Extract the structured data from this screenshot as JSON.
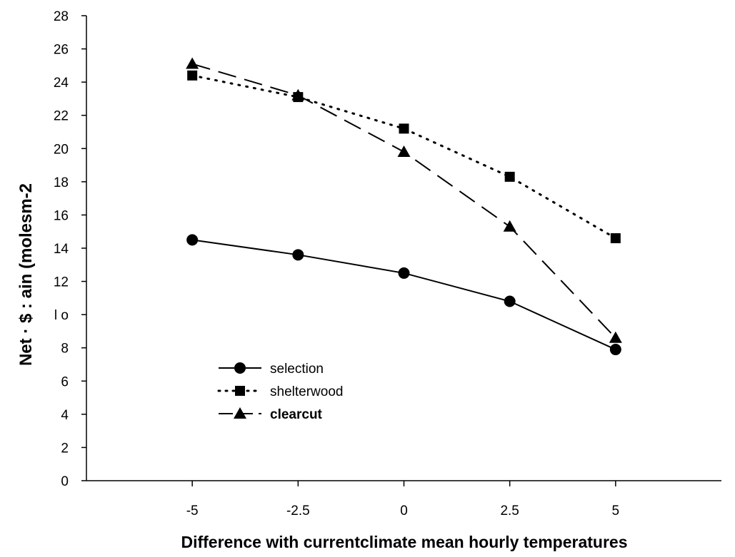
{
  "chart_data": {
    "type": "line",
    "title": "",
    "xlabel": "Difference with currentclimate mean hourly temperatures",
    "ylabel": "Net  ·  $  :  ain (molesm-2",
    "x": [
      -5,
      -2.5,
      0,
      2.5,
      5
    ],
    "x_tick_labels": [
      "-5",
      "-2.5",
      "0",
      "2.5",
      "5"
    ],
    "xlim": [
      -7.5,
      7.5
    ],
    "y_tick_labels": [
      "0",
      "2",
      "4",
      "6",
      "8",
      "l o",
      "12",
      "14",
      "16",
      "18",
      "20",
      "22",
      "24",
      "26",
      "28"
    ],
    "ylim": [
      0,
      28
    ],
    "grid": false,
    "legend_position": "lower-left",
    "series": [
      {
        "name": "selection",
        "marker": "circle",
        "line_style": "solid",
        "values": [
          14.5,
          13.6,
          12.5,
          10.8,
          7.9
        ]
      },
      {
        "name": "shelterwood",
        "marker": "square",
        "line_style": "dotted",
        "values": [
          24.4,
          23.1,
          21.2,
          18.3,
          14.6
        ]
      },
      {
        "name": "clearcut",
        "marker": "triangle",
        "line_style": "dashed",
        "values": [
          25.1,
          23.2,
          19.8,
          15.3,
          8.6
        ]
      }
    ]
  }
}
